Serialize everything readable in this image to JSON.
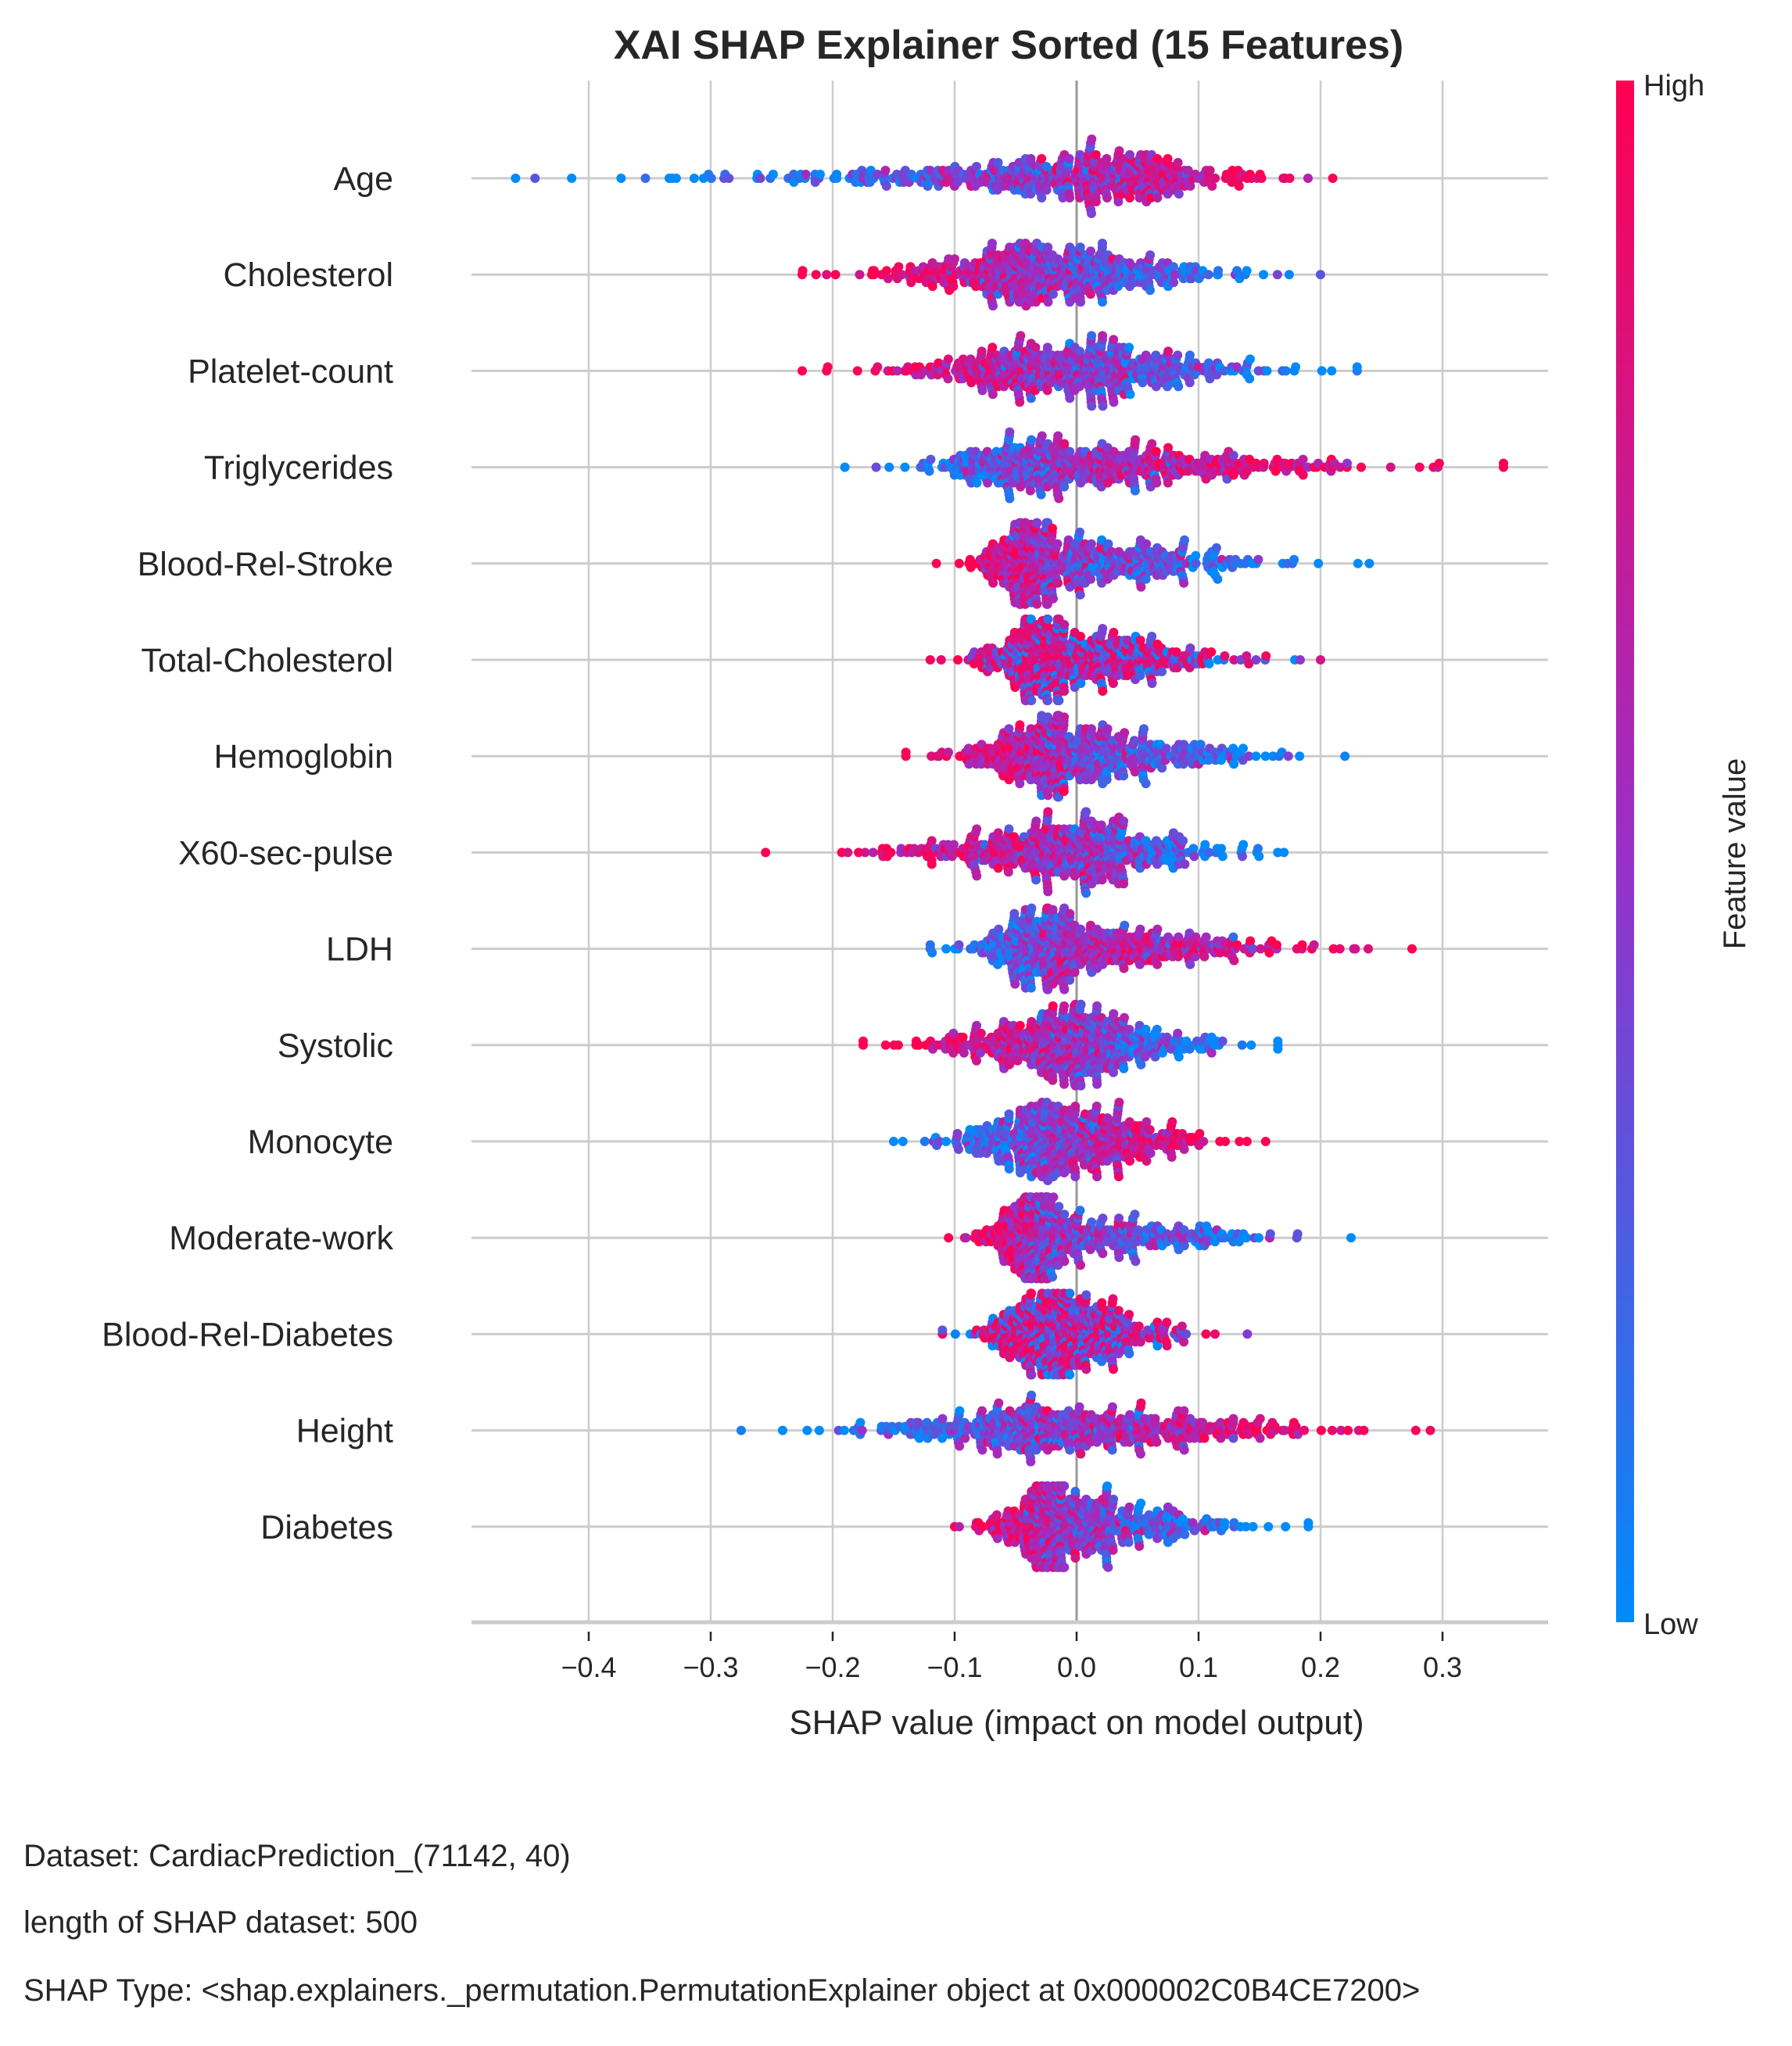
{
  "chart_data": {
    "type": "scatter",
    "subtype": "beeswarm",
    "title": "XAI SHAP Explainer Sorted  (15 Features)",
    "xlabel": "SHAP value (impact on model output)",
    "xlim": [
      -0.5,
      0.39
    ],
    "xticks": [
      -0.4,
      -0.3,
      -0.2,
      -0.1,
      0.0,
      0.1,
      0.2,
      0.3
    ],
    "xtick_labels": [
      "−0.4",
      "−0.3",
      "−0.2",
      "−0.1",
      "0.0",
      "0.1",
      "0.2",
      "0.3"
    ],
    "grid": true,
    "colorbar": {
      "label": "Feature value",
      "high_label": "High",
      "low_label": "Low",
      "high_color": "#ff0052",
      "mid_color": "#9a2fc8",
      "low_color": "#008bfb"
    },
    "points_per_feature": 500,
    "features": [
      {
        "name": "Age",
        "min": -0.46,
        "max": 0.21,
        "center": 0.0,
        "high_value_effect": "positive"
      },
      {
        "name": "Cholesterol",
        "min": -0.225,
        "max": 0.2,
        "center": -0.03,
        "high_value_effect": "negative"
      },
      {
        "name": "Platelet-count",
        "min": -0.225,
        "max": 0.23,
        "center": 0.0,
        "high_value_effect": "negative"
      },
      {
        "name": "Triglycerides",
        "min": -0.19,
        "max": 0.35,
        "center": -0.01,
        "high_value_effect": "positive"
      },
      {
        "name": "Blood-Rel-Stroke",
        "min": -0.115,
        "max": 0.24,
        "center": -0.02,
        "high_value_effect": "negative"
      },
      {
        "name": "Total-Cholesterol",
        "min": -0.12,
        "max": 0.2,
        "center": -0.01,
        "high_value_effect": "mixed"
      },
      {
        "name": "Hemoglobin",
        "min": -0.14,
        "max": 0.22,
        "center": -0.01,
        "high_value_effect": "negative"
      },
      {
        "name": "X60-sec-pulse",
        "min": -0.255,
        "max": 0.17,
        "center": 0.0,
        "high_value_effect": "negative"
      },
      {
        "name": "LDH",
        "min": -0.12,
        "max": 0.275,
        "center": -0.01,
        "high_value_effect": "positive"
      },
      {
        "name": "Systolic",
        "min": -0.175,
        "max": 0.165,
        "center": 0.0,
        "high_value_effect": "negative"
      },
      {
        "name": "Monocyte",
        "min": -0.15,
        "max": 0.155,
        "center": -0.01,
        "high_value_effect": "positive"
      },
      {
        "name": "Moderate-work",
        "min": -0.105,
        "max": 0.225,
        "center": -0.02,
        "high_value_effect": "negative"
      },
      {
        "name": "Blood-Rel-Diabetes",
        "min": -0.11,
        "max": 0.14,
        "center": -0.01,
        "high_value_effect": "mixed"
      },
      {
        "name": "Height",
        "min": -0.275,
        "max": 0.29,
        "center": 0.0,
        "high_value_effect": "positive"
      },
      {
        "name": "Diabetes",
        "min": -0.1,
        "max": 0.19,
        "center": -0.01,
        "high_value_effect": "negative"
      }
    ]
  },
  "footer": {
    "dataset": "Dataset:  CardiacPrediction_(71142, 40)",
    "length": "length of SHAP dataset: 500",
    "type": "SHAP Type: <shap.explainers._permutation.PermutationExplainer object at 0x000002C0B4CE7200>"
  }
}
